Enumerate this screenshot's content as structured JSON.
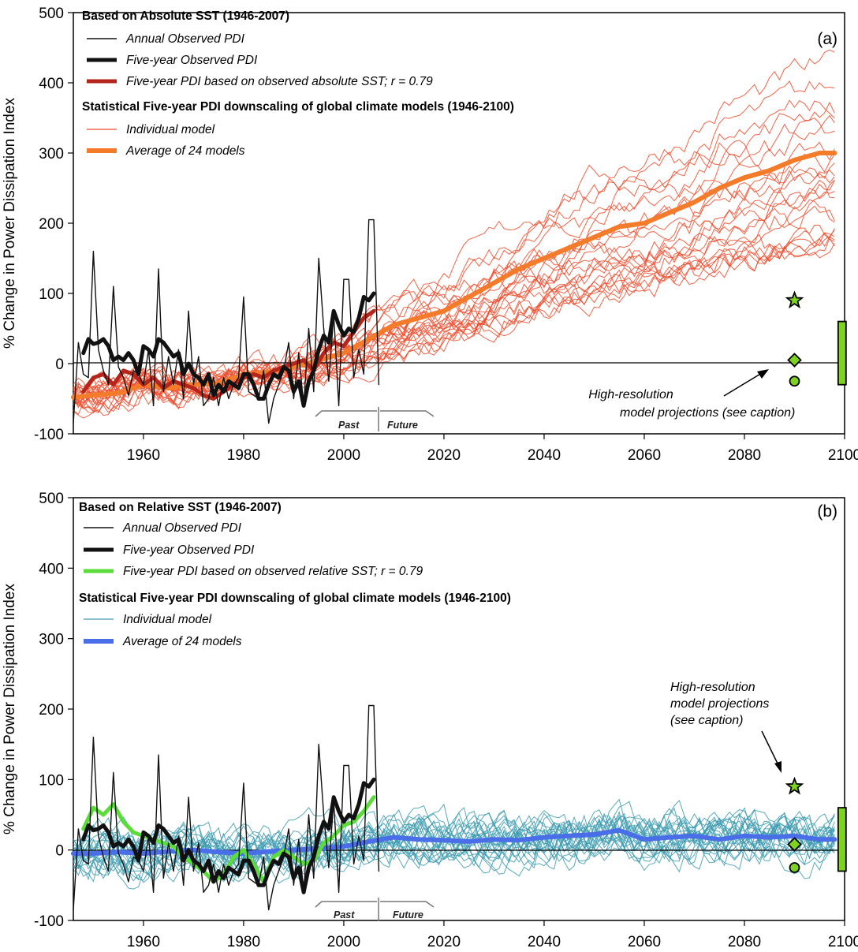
{
  "chart_data": [
    {
      "type": "line",
      "panel_label": "(a)",
      "ylabel": "% Change in Power Dissipation Index",
      "xlim": [
        1946,
        2100
      ],
      "ylim": [
        -100,
        500
      ],
      "x_ticks": [
        1960,
        1980,
        2000,
        2020,
        2040,
        2060,
        2080,
        2100
      ],
      "y_ticks": [
        -100,
        0,
        100,
        200,
        300,
        400,
        500
      ],
      "legend": {
        "group1_title": "Based on Absolute SST (1946-2007)",
        "group1_items": [
          {
            "label": "Annual Observed PDI",
            "color": "#111111",
            "style": "thin"
          },
          {
            "label": "Five-year Observed PDI",
            "color": "#111111",
            "style": "thick"
          },
          {
            "label": "Five-year PDI based on observed absolute SST; r = 0.79",
            "color": "#b5251b",
            "style": "thick"
          }
        ],
        "group2_title": "Statistical Five-year PDI downscaling of global climate models (1946-2100)",
        "group2_items": [
          {
            "label": "Individual model",
            "color": "#ee4a2a",
            "style": "thin"
          },
          {
            "label": "Average of 24 models",
            "color": "#f47b2a",
            "style": "thick"
          }
        ]
      },
      "annotation": "High-resolution model projections (see caption)",
      "annotation_lines": [
        "High-resolution",
        "model projections (see caption)"
      ],
      "past_label": "Past",
      "future_label": "Future",
      "hires_markers": {
        "x": 2090,
        "star": 90,
        "diamond": 5,
        "circle": -25,
        "bar_x": 2099.5,
        "bar_range": [
          -30,
          60
        ],
        "color": "#7ed321"
      },
      "series": [
        {
          "name": "Annual Observed PDI",
          "x": [
            1946,
            1947,
            1948,
            1949,
            1950,
            1951,
            1952,
            1953,
            1954,
            1955,
            1956,
            1957,
            1958,
            1959,
            1960,
            1961,
            1962,
            1963,
            1964,
            1965,
            1966,
            1967,
            1968,
            1969,
            1970,
            1971,
            1972,
            1973,
            1974,
            1975,
            1976,
            1977,
            1978,
            1979,
            1980,
            1981,
            1982,
            1983,
            1984,
            1985,
            1986,
            1987,
            1988,
            1989,
            1990,
            1991,
            1992,
            1993,
            1994,
            1995,
            1996,
            1997,
            1998,
            1999,
            2000,
            2001,
            2002,
            2003,
            2004,
            2005,
            2006,
            2007
          ],
          "values": [
            -85,
            30,
            -15,
            -20,
            160,
            20,
            -10,
            -30,
            110,
            -5,
            -20,
            -45,
            -10,
            -15,
            -30,
            20,
            -60,
            135,
            -40,
            10,
            -30,
            20,
            -50,
            75,
            -30,
            10,
            -60,
            -50,
            -20,
            -60,
            -20,
            -50,
            -30,
            -20,
            95,
            -40,
            -45,
            -50,
            -10,
            -85,
            -50,
            -30,
            -10,
            30,
            -50,
            15,
            -60,
            50,
            -40,
            150,
            50,
            -25,
            70,
            -60,
            120,
            120,
            -20,
            20,
            -15,
            205,
            205,
            -30
          ],
          "color": "#111111",
          "width": 1.4
        },
        {
          "name": "Five-year Observed PDI",
          "x": [
            1948,
            1949,
            1950,
            1951,
            1952,
            1953,
            1954,
            1955,
            1956,
            1957,
            1958,
            1959,
            1960,
            1961,
            1962,
            1963,
            1964,
            1965,
            1966,
            1967,
            1968,
            1969,
            1970,
            1971,
            1972,
            1973,
            1974,
            1975,
            1976,
            1977,
            1978,
            1979,
            1980,
            1981,
            1982,
            1983,
            1984,
            1985,
            1986,
            1987,
            1988,
            1989,
            1990,
            1991,
            1992,
            1993,
            1994,
            1995,
            1996,
            1997,
            1998,
            1999,
            2000,
            2001,
            2002,
            2003,
            2004,
            2005,
            2006
          ],
          "values": [
            15,
            35,
            28,
            30,
            35,
            25,
            5,
            10,
            5,
            15,
            5,
            -15,
            25,
            20,
            10,
            35,
            30,
            20,
            10,
            15,
            -15,
            0,
            -15,
            -20,
            -30,
            -15,
            -45,
            -30,
            -40,
            -25,
            -30,
            -35,
            -15,
            -15,
            -30,
            -50,
            -50,
            -30,
            -15,
            -20,
            -5,
            -10,
            -40,
            -25,
            -60,
            -25,
            -10,
            20,
            40,
            30,
            75,
            55,
            40,
            50,
            45,
            65,
            95,
            90,
            100
          ],
          "color": "#111111",
          "width": 5
        },
        {
          "name": "Five-year PDI based on observed absolute SST; r = 0.79",
          "x": [
            1948,
            1950,
            1952,
            1954,
            1956,
            1958,
            1960,
            1962,
            1964,
            1966,
            1968,
            1970,
            1972,
            1974,
            1976,
            1978,
            1980,
            1982,
            1984,
            1986,
            1988,
            1990,
            1992,
            1994,
            1996,
            1998,
            2000,
            2002,
            2004,
            2006
          ],
          "values": [
            -40,
            -20,
            -15,
            -30,
            -10,
            -15,
            -30,
            -20,
            -35,
            -25,
            -30,
            -35,
            -45,
            -50,
            -40,
            -30,
            -20,
            -15,
            -20,
            -10,
            -5,
            0,
            5,
            -10,
            15,
            30,
            25,
            45,
            65,
            75
          ],
          "color": "#b5251b",
          "width": 5
        },
        {
          "name": "Average of 24 models",
          "x": [
            1946,
            1950,
            1955,
            1960,
            1965,
            1970,
            1975,
            1980,
            1985,
            1990,
            1995,
            2000,
            2005,
            2010,
            2015,
            2020,
            2025,
            2030,
            2035,
            2040,
            2045,
            2050,
            2055,
            2060,
            2065,
            2070,
            2075,
            2080,
            2085,
            2090,
            2095,
            2098
          ],
          "values": [
            -48,
            -45,
            -42,
            -30,
            -35,
            -30,
            -28,
            -15,
            -12,
            -5,
            5,
            15,
            35,
            55,
            65,
            75,
            95,
            115,
            135,
            150,
            165,
            180,
            195,
            200,
            215,
            230,
            250,
            265,
            275,
            290,
            300,
            300
          ],
          "color": "#f47b2a",
          "width": 6
        }
      ]
    },
    {
      "type": "line",
      "panel_label": "(b)",
      "ylabel": "% Change in Power Dissipation Index",
      "xlim": [
        1946,
        2100
      ],
      "ylim": [
        -100,
        500
      ],
      "x_ticks": [
        1960,
        1980,
        2000,
        2020,
        2040,
        2060,
        2080,
        2100
      ],
      "y_ticks": [
        -100,
        0,
        100,
        200,
        300,
        400,
        500
      ],
      "legend": {
        "group1_title": "Based on Relative SST (1946-2007)",
        "group1_items": [
          {
            "label": "Annual Observed PDI",
            "color": "#111111",
            "style": "thin"
          },
          {
            "label": "Five-year Observed PDI",
            "color": "#111111",
            "style": "thick"
          },
          {
            "label": "Five-year PDI based on observed relative SST; r = 0.79",
            "color": "#5bdc3a",
            "style": "thick"
          }
        ],
        "group2_title": "Statistical Five-year PDI downscaling of global climate models (1946-2100)",
        "group2_items": [
          {
            "label": "Individual model",
            "color": "#3d9bb0",
            "style": "thin"
          },
          {
            "label": "Average of 24 models",
            "color": "#4a6ee8",
            "style": "thick"
          }
        ]
      },
      "annotation": "High-resolution model projections (see caption)",
      "annotation_lines": [
        "High-resolution",
        "model projections",
        "(see caption)"
      ],
      "past_label": "Past",
      "future_label": "Future",
      "hires_markers": {
        "x": 2090,
        "star": 90,
        "diamond": 8,
        "circle": -25,
        "bar_x": 2099.5,
        "bar_range": [
          -30,
          60
        ],
        "color": "#7ed321"
      },
      "series": [
        {
          "name": "Annual Observed PDI",
          "x": [
            1946,
            1947,
            1948,
            1949,
            1950,
            1951,
            1952,
            1953,
            1954,
            1955,
            1956,
            1957,
            1958,
            1959,
            1960,
            1961,
            1962,
            1963,
            1964,
            1965,
            1966,
            1967,
            1968,
            1969,
            1970,
            1971,
            1972,
            1973,
            1974,
            1975,
            1976,
            1977,
            1978,
            1979,
            1980,
            1981,
            1982,
            1983,
            1984,
            1985,
            1986,
            1987,
            1988,
            1989,
            1990,
            1991,
            1992,
            1993,
            1994,
            1995,
            1996,
            1997,
            1998,
            1999,
            2000,
            2001,
            2002,
            2003,
            2004,
            2005,
            2006,
            2007
          ],
          "values": [
            -85,
            30,
            -15,
            -20,
            160,
            20,
            -10,
            -30,
            110,
            -5,
            -20,
            -45,
            -10,
            -15,
            -30,
            20,
            -60,
            135,
            -40,
            10,
            -30,
            20,
            -50,
            75,
            -30,
            10,
            -60,
            -50,
            -20,
            -60,
            -20,
            -50,
            -30,
            -20,
            95,
            -40,
            -45,
            -50,
            -10,
            -85,
            -50,
            -30,
            -10,
            30,
            -50,
            15,
            -60,
            50,
            -40,
            150,
            50,
            -25,
            70,
            -60,
            120,
            120,
            -20,
            20,
            -15,
            205,
            205,
            -30
          ],
          "color": "#111111",
          "width": 1.4
        },
        {
          "name": "Five-year Observed PDI",
          "x": [
            1948,
            1949,
            1950,
            1951,
            1952,
            1953,
            1954,
            1955,
            1956,
            1957,
            1958,
            1959,
            1960,
            1961,
            1962,
            1963,
            1964,
            1965,
            1966,
            1967,
            1968,
            1969,
            1970,
            1971,
            1972,
            1973,
            1974,
            1975,
            1976,
            1977,
            1978,
            1979,
            1980,
            1981,
            1982,
            1983,
            1984,
            1985,
            1986,
            1987,
            1988,
            1989,
            1990,
            1991,
            1992,
            1993,
            1994,
            1995,
            1996,
            1997,
            1998,
            1999,
            2000,
            2001,
            2002,
            2003,
            2004,
            2005,
            2006
          ],
          "values": [
            15,
            35,
            28,
            30,
            35,
            25,
            5,
            10,
            5,
            15,
            5,
            -15,
            25,
            20,
            10,
            35,
            30,
            20,
            10,
            15,
            -15,
            0,
            -15,
            -20,
            -30,
            -15,
            -45,
            -30,
            -40,
            -25,
            -30,
            -35,
            -15,
            -15,
            -30,
            -50,
            -50,
            -30,
            -15,
            -20,
            -5,
            -10,
            -40,
            -25,
            -60,
            -25,
            -10,
            20,
            40,
            30,
            75,
            55,
            40,
            50,
            45,
            65,
            95,
            90,
            100
          ],
          "color": "#111111",
          "width": 5
        },
        {
          "name": "Five-year PDI based on observed relative SST; r = 0.79",
          "x": [
            1948,
            1950,
            1952,
            1954,
            1956,
            1958,
            1960,
            1962,
            1964,
            1966,
            1968,
            1970,
            1972,
            1974,
            1976,
            1978,
            1980,
            1982,
            1984,
            1986,
            1988,
            1990,
            1992,
            1994,
            1996,
            1998,
            2000,
            2002,
            2004,
            2006
          ],
          "values": [
            30,
            60,
            50,
            65,
            40,
            25,
            20,
            15,
            10,
            5,
            -10,
            -20,
            -30,
            -45,
            -35,
            -10,
            0,
            -20,
            -45,
            -10,
            0,
            -10,
            -20,
            -15,
            10,
            20,
            35,
            40,
            55,
            75
          ],
          "color": "#5bdc3a",
          "width": 5
        },
        {
          "name": "Average of 24 models",
          "x": [
            1946,
            1950,
            1955,
            1960,
            1965,
            1970,
            1975,
            1980,
            1985,
            1990,
            1995,
            2000,
            2005,
            2010,
            2015,
            2020,
            2025,
            2030,
            2035,
            2040,
            2045,
            2050,
            2055,
            2060,
            2065,
            2070,
            2075,
            2080,
            2085,
            2090,
            2095,
            2098
          ],
          "values": [
            -5,
            -5,
            -3,
            -5,
            -2,
            0,
            -3,
            -5,
            -2,
            0,
            2,
            5,
            12,
            18,
            15,
            14,
            12,
            15,
            14,
            18,
            20,
            22,
            28,
            15,
            18,
            20,
            15,
            20,
            18,
            20,
            15,
            15
          ],
          "color": "#4a6ee8",
          "width": 6
        }
      ]
    }
  ]
}
